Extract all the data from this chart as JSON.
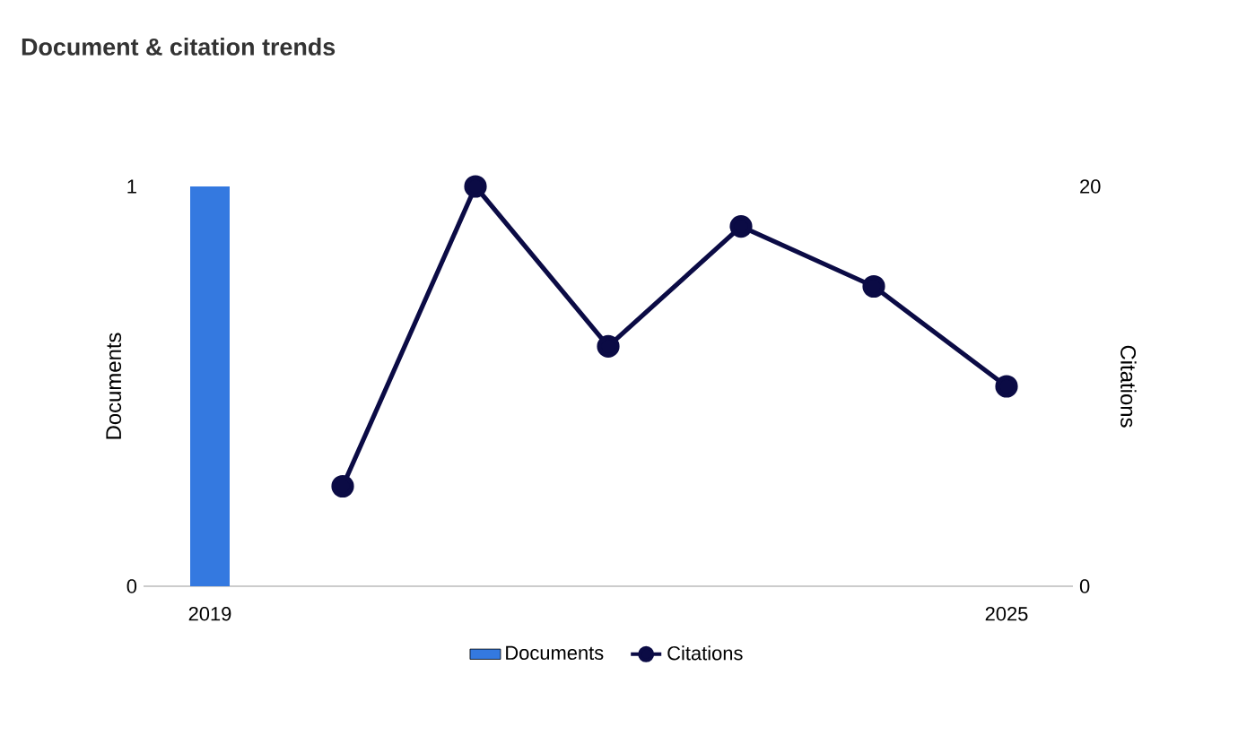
{
  "chart_data": {
    "type": "bar",
    "title": "Document & citation trends",
    "categories": [
      "2019",
      null,
      null,
      null,
      null,
      null,
      "2025"
    ],
    "ylabel": "Documents",
    "y2label": "Citations",
    "ylim": [
      0,
      1
    ],
    "yticks": [
      0,
      1
    ],
    "y2lim": [
      0,
      20
    ],
    "y2ticks": [
      0,
      20
    ],
    "legend": "bottom",
    "series": [
      {
        "name": "Documents",
        "color": "#3479e0",
        "values": [
          1,
          0,
          0,
          0,
          0,
          0,
          0
        ]
      },
      {
        "name": "Citations",
        "type": "line",
        "axis": "y2",
        "marker": "circle",
        "color": "#0b0b45",
        "values": [
          null,
          5,
          20,
          12,
          18,
          15,
          10
        ]
      }
    ]
  }
}
